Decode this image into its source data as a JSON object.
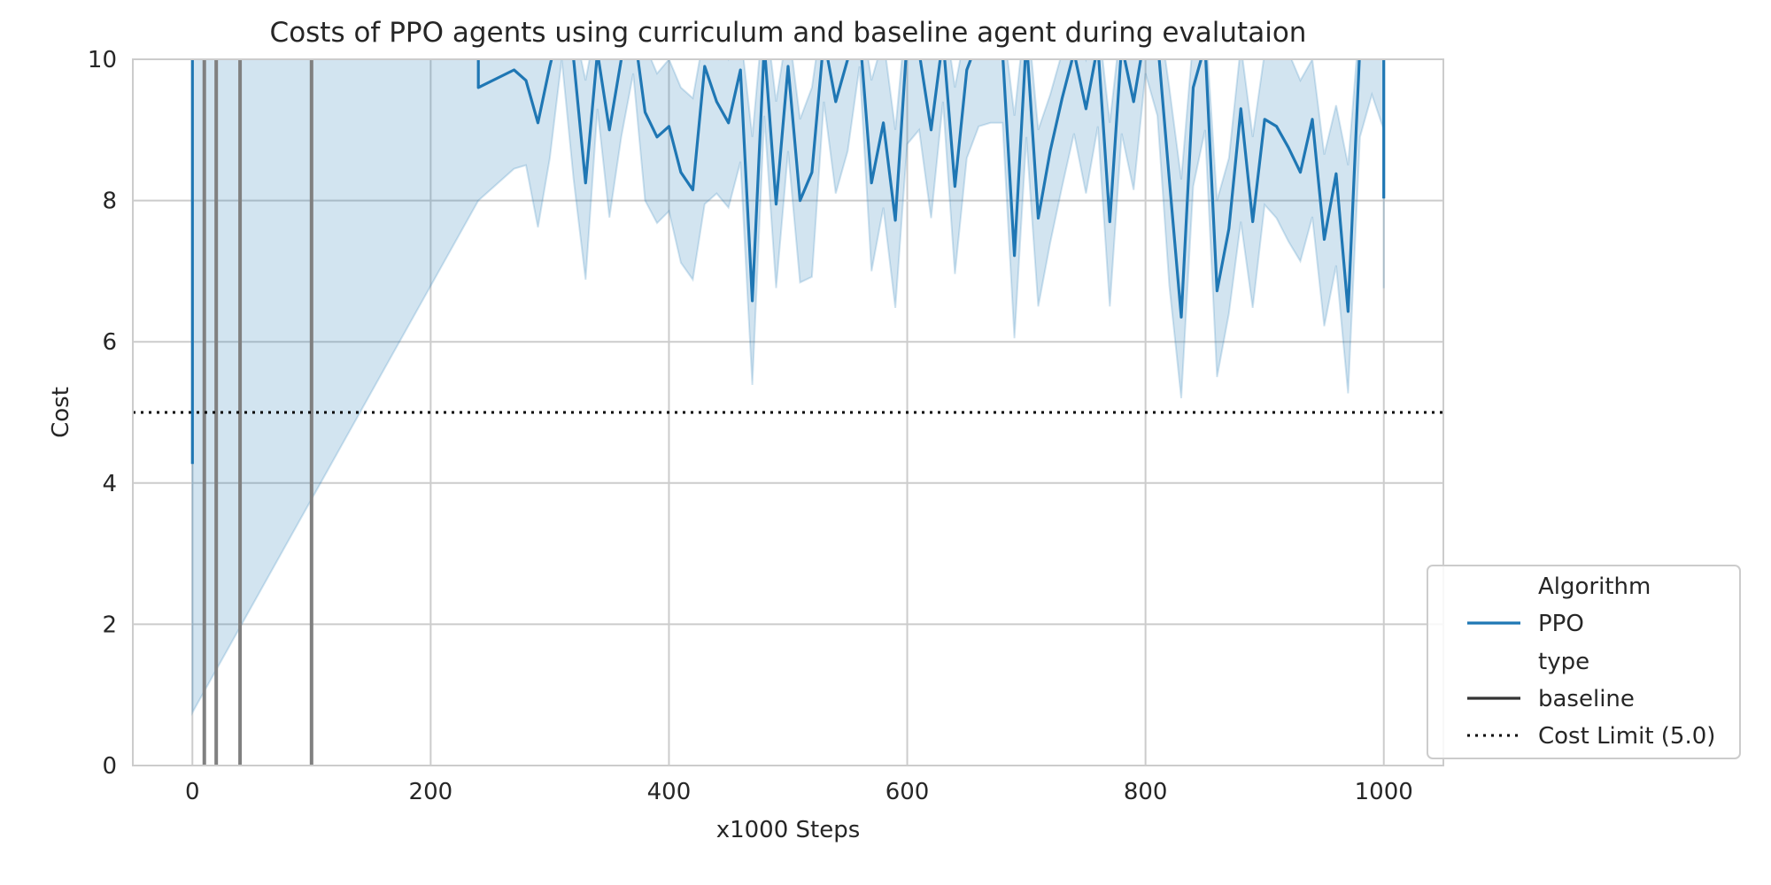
{
  "chart_data": {
    "type": "line",
    "title": "Costs of PPO agents using curriculum and baseline agent during evalutaion",
    "xlabel": "x1000 Steps",
    "ylabel": "Cost",
    "xlim": [
      -50,
      1050
    ],
    "ylim": [
      0,
      10
    ],
    "xticks": [
      0,
      200,
      400,
      600,
      800,
      1000
    ],
    "yticks": [
      0,
      2,
      4,
      6,
      8,
      10
    ],
    "grid": true,
    "legend_position": "outside-bottom-right",
    "legend": {
      "groups": [
        {
          "title": "Algorithm",
          "entries": [
            {
              "label": "PPO",
              "style": "solid",
              "color": "#1f77b4"
            }
          ]
        },
        {
          "title": "type",
          "entries": [
            {
              "label": "baseline",
              "style": "solid",
              "color": "#333333"
            }
          ]
        }
      ],
      "extra": [
        {
          "label": "Cost Limit (5.0)",
          "style": "dotted",
          "color": "#000000"
        }
      ]
    },
    "series": [
      {
        "name": "PPO",
        "color": "#1f77b4",
        "x": [
          0,
          0,
          240,
          240,
          270,
          280,
          290,
          300,
          310,
          320,
          330,
          340,
          350,
          360,
          370,
          380,
          390,
          400,
          410,
          420,
          430,
          440,
          450,
          460,
          470,
          480,
          490,
          500,
          510,
          520,
          530,
          540,
          550,
          560,
          570,
          580,
          590,
          600,
          610,
          620,
          630,
          640,
          650,
          660,
          670,
          680,
          690,
          700,
          710,
          720,
          730,
          740,
          750,
          760,
          770,
          780,
          790,
          800,
          810,
          820,
          830,
          840,
          850,
          860,
          870,
          880,
          890,
          900,
          910,
          920,
          930,
          940,
          950,
          960,
          970,
          980,
          990,
          1000,
          1000
        ],
        "y": [
          4.27,
          10.5,
          10.3,
          9.6,
          9.85,
          9.7,
          9.1,
          9.9,
          10.6,
          10.0,
          8.25,
          10.1,
          9.0,
          10.0,
          10.5,
          9.25,
          8.9,
          9.05,
          8.4,
          8.15,
          9.9,
          9.4,
          9.1,
          9.85,
          6.58,
          10.2,
          7.95,
          9.9,
          8.0,
          8.4,
          10.3,
          9.4,
          10.0,
          10.4,
          8.25,
          9.1,
          7.72,
          10.3,
          10.1,
          9.0,
          10.3,
          8.2,
          9.85,
          10.3,
          10.4,
          10.1,
          7.22,
          10.3,
          7.75,
          8.7,
          9.45,
          10.1,
          9.3,
          10.2,
          7.7,
          10.2,
          9.4,
          10.4,
          10.3,
          8.3,
          6.35,
          9.6,
          10.2,
          6.72,
          7.6,
          9.3,
          7.7,
          9.15,
          9.05,
          8.75,
          8.4,
          9.15,
          7.45,
          8.38,
          6.43,
          10.2,
          10.5,
          10.1,
          8.03
        ],
        "upper": [
          10.8,
          10.8,
          10.8,
          10.6,
          10.4,
          10.4,
          10.1,
          10.5,
          10.8,
          10.5,
          9.7,
          10.6,
          10.2,
          10.5,
          10.8,
          10.2,
          9.8,
          10.0,
          9.6,
          9.45,
          10.4,
          10.3,
          10.0,
          10.4,
          8.9,
          10.8,
          9.4,
          10.5,
          9.15,
          9.6,
          10.8,
          10.3,
          10.5,
          10.8,
          9.7,
          10.3,
          9.0,
          10.8,
          10.6,
          10.0,
          10.8,
          9.6,
          10.5,
          10.8,
          10.8,
          10.6,
          9.2,
          10.8,
          9.0,
          9.5,
          10.1,
          10.6,
          10.0,
          10.6,
          9.1,
          10.6,
          10.2,
          10.8,
          10.8,
          9.6,
          8.3,
          10.3,
          10.6,
          8.0,
          8.6,
          10.2,
          8.9,
          10.1,
          10.4,
          10.1,
          9.7,
          10.0,
          8.65,
          9.35,
          8.5,
          10.6,
          10.8,
          10.6,
          9.3
        ],
        "lower": [
          0.75,
          0.75,
          8.0,
          8.0,
          8.45,
          8.5,
          7.62,
          8.6,
          10.0,
          8.3,
          6.88,
          9.3,
          7.76,
          8.9,
          9.8,
          8.0,
          7.68,
          7.85,
          7.12,
          6.88,
          7.95,
          8.1,
          7.9,
          8.55,
          5.39,
          9.2,
          6.76,
          8.7,
          6.84,
          6.92,
          9.4,
          8.1,
          8.7,
          9.9,
          7.0,
          7.9,
          6.48,
          8.8,
          9.0,
          7.75,
          9.4,
          6.96,
          8.6,
          9.05,
          9.1,
          9.1,
          6.05,
          8.9,
          6.5,
          7.4,
          8.2,
          8.95,
          8.1,
          9.05,
          6.5,
          8.95,
          8.15,
          9.8,
          9.2,
          6.8,
          5.2,
          8.2,
          9.0,
          5.5,
          6.4,
          7.7,
          6.48,
          7.94,
          7.75,
          7.42,
          7.14,
          7.77,
          6.22,
          7.08,
          5.27,
          8.9,
          9.5,
          9.0,
          6.76
        ]
      },
      {
        "name": "baseline",
        "style": "vertical-lines",
        "color": "#808080",
        "x": [
          10,
          20,
          40,
          100
        ]
      }
    ],
    "cost_limit": {
      "label": "Cost Limit (5.0)",
      "value": 5.0,
      "style": "dotted",
      "color": "#000000"
    }
  }
}
